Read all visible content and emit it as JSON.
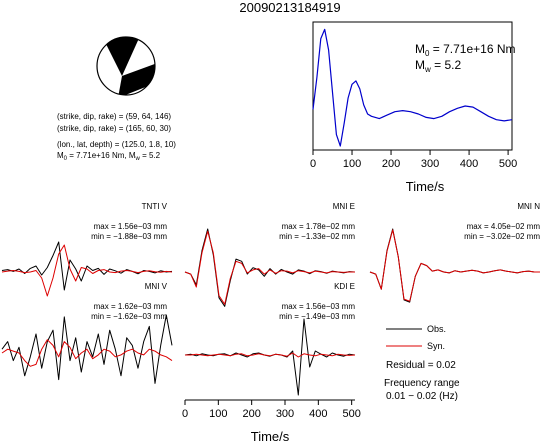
{
  "event_id": "20090213184919",
  "beachball": {
    "lines": [
      "(strike, dip, rake) = (59, 64, 146)",
      "(strike, dip, rake) = (165, 60, 30)",
      "(lon., lat, depth) = (125.0, 1.8, 10)"
    ],
    "m0_text": "M",
    "m0_sub": "0",
    "m0_value": " = 7.71e+16 Nm, M",
    "mw_sub": "w",
    "mw_value": " = 5.2"
  },
  "stf": {
    "m0_label": "M",
    "m0_sub": "0",
    "m0_value": " = 7.71e+16 Nm",
    "mw_label": "M",
    "mw_sub": "w",
    "mw_value": " = 5.2",
    "xlabel": "Time/s"
  },
  "legend": {
    "obs": "Obs.",
    "syn": "Syn.",
    "residual": "Residual = 0.02",
    "freq_title": "Frequency range",
    "freq_range": "0.01 − 0.02 (Hz)"
  },
  "waveform_xlabel": "Time/s",
  "colors": {
    "observed": "#000000",
    "synthetic": "#dd0000",
    "stf": "#0000cc"
  },
  "chart_data": [
    {
      "type": "line",
      "name": "source-time-function",
      "xlabel": "Time/s",
      "xlim": [
        0,
        510
      ],
      "xticks": [
        0,
        100,
        200,
        300,
        400,
        500
      ],
      "series": [
        {
          "x": [
            0,
            10,
            20,
            30,
            40,
            50,
            60,
            70,
            80,
            90,
            100,
            110,
            120,
            130,
            140,
            150,
            170,
            190,
            210,
            230,
            250,
            270,
            290,
            310,
            330,
            350,
            370,
            390,
            410,
            430,
            450,
            470,
            490,
            510
          ],
          "y": [
            0.3,
            0.58,
            0.92,
            1.0,
            0.82,
            0.45,
            0.08,
            -0.02,
            0.18,
            0.4,
            0.52,
            0.55,
            0.48,
            0.34,
            0.26,
            0.24,
            0.22,
            0.25,
            0.28,
            0.29,
            0.28,
            0.26,
            0.23,
            0.22,
            0.24,
            0.28,
            0.31,
            0.33,
            0.32,
            0.28,
            0.24,
            0.21,
            0.2,
            0.21
          ]
        }
      ]
    },
    {
      "type": "line",
      "name": "waveform-comparison",
      "xlabel": "Time/s",
      "xlim": [
        0,
        510
      ],
      "xticks": [
        0,
        100,
        200,
        300,
        400,
        500
      ],
      "traces": [
        {
          "station": "TNTI V",
          "max": "max = 1.56e−03 mm",
          "min": "min = −1.88e−03 mm",
          "obs": [
            0.05,
            0.08,
            0.02,
            0.1,
            -0.05,
            0.12,
            0.2,
            -0.1,
            0.15,
            0.55,
            1.0,
            -0.6,
            0.4,
            0.1,
            -0.3,
            0.2,
            0.05,
            0.12,
            -0.08,
            0.1,
            0.04,
            -0.04,
            0.08,
            0.02,
            -0.06,
            0.05,
            0.02,
            -0.03,
            0.04,
            0.0,
            0.02
          ],
          "syn": [
            0.0,
            0.03,
            0.05,
            0.02,
            -0.02,
            0.0,
            0.05,
            -0.2,
            -0.8,
            -0.2,
            0.6,
            0.9,
            0.1,
            -0.3,
            0.15,
            0.1,
            -0.05,
            0.05,
            0.08,
            0.0,
            -0.02,
            0.03,
            0.05,
            0.02,
            -0.02,
            0.02,
            0.04,
            0.01,
            -0.01,
            0.02,
            0.0
          ]
        },
        {
          "station": "MNI E",
          "max": "max = 1.78e−02 mm",
          "min": "min = −1.33e−02 mm",
          "obs": [
            0.0,
            -0.05,
            -0.3,
            0.5,
            1.0,
            0.4,
            -0.6,
            -0.8,
            -0.2,
            0.3,
            0.25,
            -0.05,
            0.1,
            0.05,
            -0.1,
            0.08,
            -0.05,
            0.06,
            0.0,
            -0.05,
            0.05,
            0.02,
            -0.04,
            0.03,
            0.01,
            -0.03,
            0.02,
            0.0,
            -0.02,
            0.01,
            0.0
          ],
          "syn": [
            0.0,
            -0.05,
            -0.35,
            0.45,
            0.95,
            0.45,
            -0.55,
            -0.75,
            -0.15,
            0.25,
            0.2,
            -0.02,
            0.05,
            0.08,
            -0.05,
            0.05,
            -0.03,
            0.03,
            0.02,
            -0.02,
            0.03,
            0.01,
            -0.02,
            0.02,
            0.0,
            -0.02,
            0.01,
            0.0,
            -0.01,
            0.0,
            0.0
          ]
        },
        {
          "station": "MNI N",
          "max": "max = 4.05e−02 mm",
          "min": "min = −3.02e−02 mm",
          "obs": [
            0.0,
            -0.05,
            -0.4,
            0.5,
            1.0,
            0.35,
            -0.65,
            -0.7,
            -0.1,
            0.2,
            0.15,
            0.02,
            0.05,
            0.0,
            -0.02,
            0.03,
            0.0,
            0.02,
            0.04,
            0.02,
            -0.02,
            0.0,
            0.03,
            0.05,
            0.02,
            0.0,
            -0.02,
            0.01,
            0.02,
            0.0,
            0.0
          ],
          "syn": [
            0.0,
            -0.05,
            -0.4,
            0.48,
            0.98,
            0.35,
            -0.63,
            -0.68,
            -0.1,
            0.2,
            0.15,
            0.02,
            0.05,
            0.0,
            -0.02,
            0.03,
            0.0,
            0.02,
            0.04,
            0.02,
            -0.02,
            0.0,
            0.03,
            0.05,
            0.02,
            0.0,
            -0.02,
            0.01,
            0.02,
            0.0,
            0.0
          ]
        },
        {
          "station": "MNI V",
          "max": "max = 1.62e−03 mm",
          "min": "min = −1.62e−03 mm",
          "obs": [
            0.1,
            0.3,
            -0.2,
            0.15,
            -0.6,
            -0.1,
            0.5,
            -0.4,
            0.3,
            0.6,
            -0.7,
            0.95,
            -0.2,
            0.4,
            -0.5,
            0.3,
            -0.1,
            0.5,
            -0.3,
            0.6,
            0.1,
            -0.6,
            0.4,
            0.2,
            -0.4,
            0.3,
            0.7,
            -0.8,
            0.2,
            1.0,
            0.2
          ],
          "syn": [
            0.0,
            0.1,
            0.05,
            0.0,
            -0.2,
            -0.35,
            -0.3,
            0.1,
            0.35,
            0.2,
            -0.1,
            0.3,
            0.15,
            -0.15,
            0.0,
            0.1,
            -0.15,
            -0.05,
            0.1,
            0.05,
            -0.1,
            -0.05,
            0.05,
            0.1,
            0.0,
            -0.05,
            0.1,
            0.05,
            -0.05,
            -0.1,
            -0.2
          ]
        },
        {
          "station": "KDI E",
          "max": "max = 1.56e−03 mm",
          "min": "min = −1.49e−03 mm",
          "obs": [
            0.0,
            0.02,
            -0.02,
            0.03,
            0.0,
            -0.02,
            0.02,
            0.03,
            -0.02,
            0.05,
            0.0,
            -0.05,
            0.03,
            0.05,
            0.0,
            -0.03,
            0.02,
            0.0,
            -0.05,
            0.1,
            -1.0,
            0.9,
            -0.3,
            0.1,
            0.02,
            -0.05,
            0.05,
            0.0,
            -0.03,
            0.02,
            0.0
          ],
          "syn": [
            0.0,
            0.0,
            0.02,
            0.0,
            -0.02,
            0.0,
            0.02,
            0.0,
            -0.02,
            0.02,
            0.03,
            -0.02,
            0.0,
            0.03,
            0.0,
            -0.02,
            0.02,
            0.0,
            -0.03,
            0.05,
            -0.05,
            0.03,
            0.0,
            -0.02,
            0.02,
            0.0,
            -0.02,
            0.02,
            0.0,
            -0.01,
            0.0
          ]
        }
      ]
    }
  ]
}
